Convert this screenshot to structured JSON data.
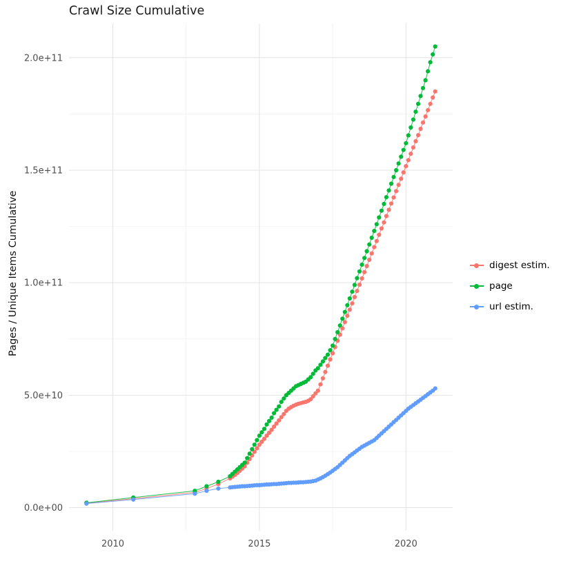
{
  "chart_data": {
    "type": "scatter",
    "title": "Crawl Size Cumulative",
    "xlabel": "",
    "ylabel": "Pages / Unique Items Cumulative",
    "legend_position": "right",
    "grid": true,
    "value_unit": 1000000000.0,
    "xlim": [
      2009.1,
      2021.0
    ],
    "ylim_e9": [
      0,
      205
    ],
    "x_ticks": [
      {
        "v": 2010,
        "label": "2010"
      },
      {
        "v": 2015,
        "label": "2015"
      },
      {
        "v": 2020,
        "label": "2020"
      }
    ],
    "x_minor": [
      2012.5,
      2017.5
    ],
    "y_ticks": [
      {
        "v": 0,
        "label": "0.0e+00"
      },
      {
        "v": 50,
        "label": "5.0e+10"
      },
      {
        "v": 100,
        "label": "1.0e+11"
      },
      {
        "v": 150,
        "label": "1.5e+11"
      },
      {
        "v": 200,
        "label": "2.0e+11"
      }
    ],
    "y_minor": [
      25,
      75,
      125,
      175
    ],
    "x": [
      2009.1,
      2010.7,
      2012.8,
      2013.2,
      2013.6,
      2014.0,
      2014.083,
      2014.167,
      2014.25,
      2014.333,
      2014.417,
      2014.5,
      2014.583,
      2014.667,
      2014.75,
      2014.833,
      2014.917,
      2015.0,
      2015.083,
      2015.167,
      2015.25,
      2015.333,
      2015.417,
      2015.5,
      2015.583,
      2015.667,
      2015.75,
      2015.833,
      2015.917,
      2016.0,
      2016.083,
      2016.167,
      2016.25,
      2016.333,
      2016.417,
      2016.5,
      2016.583,
      2016.667,
      2016.75,
      2016.833,
      2016.917,
      2017.0,
      2017.083,
      2017.167,
      2017.25,
      2017.333,
      2017.417,
      2017.5,
      2017.583,
      2017.667,
      2017.75,
      2017.833,
      2017.917,
      2018.0,
      2018.083,
      2018.167,
      2018.25,
      2018.333,
      2018.417,
      2018.5,
      2018.583,
      2018.667,
      2018.75,
      2018.833,
      2018.917,
      2019.0,
      2019.083,
      2019.167,
      2019.25,
      2019.333,
      2019.417,
      2019.5,
      2019.583,
      2019.667,
      2019.75,
      2019.833,
      2019.917,
      2020.0,
      2020.083,
      2020.167,
      2020.25,
      2020.333,
      2020.417,
      2020.5,
      2020.583,
      2020.667,
      2020.75,
      2020.833,
      2020.917,
      2021.0
    ],
    "series": [
      {
        "label": "digest estim.",
        "color": "#F8766D",
        "values": [
          2.0,
          4.0,
          6.8,
          8.5,
          10.5,
          13,
          13.8,
          14.6,
          15.4,
          16.4,
          17.4,
          18.4,
          20,
          21.6,
          23.2,
          24.8,
          26.4,
          28,
          29.3,
          30.6,
          32,
          33.3,
          34.6,
          36,
          37.4,
          38.8,
          40.2,
          41.6,
          43,
          44,
          44.7,
          45.3,
          45.8,
          46.2,
          46.5,
          46.8,
          47,
          47.5,
          48.2,
          49.5,
          50.8,
          52,
          54.8,
          57.5,
          60.3,
          63.1,
          65.9,
          68.6,
          71.4,
          74.2,
          76.9,
          79.7,
          82.5,
          85.3,
          88,
          90.8,
          93.6,
          96.3,
          99.1,
          101.9,
          104.7,
          107.4,
          110.2,
          113,
          115.8,
          118.5,
          121.3,
          124.1,
          126.8,
          129.6,
          132.4,
          135.2,
          137.9,
          140.7,
          143.5,
          146.2,
          149,
          151.8,
          154.5,
          157.3,
          160.1,
          162.9,
          165.6,
          168.4,
          171.2,
          173.9,
          176.7,
          179.5,
          182.3,
          185
        ]
      },
      {
        "label": "page",
        "color": "#00BA38",
        "values": [
          2.2,
          4.5,
          7.5,
          9.5,
          11.5,
          14,
          15,
          16,
          17,
          18,
          19,
          20,
          22,
          24,
          26,
          28,
          30,
          32,
          33.5,
          35,
          37,
          38.5,
          40,
          42,
          43.5,
          45,
          47,
          48.5,
          50,
          51,
          52,
          53,
          54,
          54.5,
          55,
          55.5,
          56,
          57,
          58,
          59.5,
          61,
          62,
          63.5,
          65,
          66.5,
          68,
          70,
          72,
          75,
          78,
          81,
          84,
          87,
          90,
          93,
          96,
          99,
          102,
          105,
          108,
          111,
          114,
          117,
          120,
          123,
          126,
          129,
          132,
          135,
          138,
          141,
          144,
          147,
          150,
          153,
          156,
          159,
          162,
          165.5,
          169,
          172.5,
          176,
          179.5,
          183,
          186.5,
          190,
          194,
          198,
          201.5,
          205
        ]
      },
      {
        "label": "url estim.",
        "color": "#619CFF",
        "values": [
          1.8,
          3.6,
          6.2,
          7.5,
          8.5,
          9.0,
          9.1,
          9.2,
          9.3,
          9.4,
          9.5,
          9.5,
          9.6,
          9.7,
          9.8,
          9.9,
          10.0,
          10.0,
          10.1,
          10.2,
          10.3,
          10.3,
          10.4,
          10.5,
          10.5,
          10.6,
          10.7,
          10.8,
          10.9,
          11.0,
          11.0,
          11.1,
          11.1,
          11.2,
          11.3,
          11.3,
          11.4,
          11.5,
          11.6,
          11.8,
          12.0,
          12.5,
          13.0,
          13.6,
          14.2,
          14.9,
          15.6,
          16.4,
          17.2,
          18.0,
          19.0,
          20.0,
          21.0,
          22.0,
          23.0,
          23.8,
          24.6,
          25.4,
          26.2,
          27.0,
          27.6,
          28.2,
          28.8,
          29.4,
          30.0,
          31,
          32,
          33,
          34,
          35,
          36,
          37,
          38,
          39,
          40,
          41,
          42,
          43,
          44,
          44.8,
          45.6,
          46.4,
          47.2,
          48,
          48.8,
          49.6,
          50.4,
          51.2,
          52,
          53
        ]
      }
    ]
  }
}
